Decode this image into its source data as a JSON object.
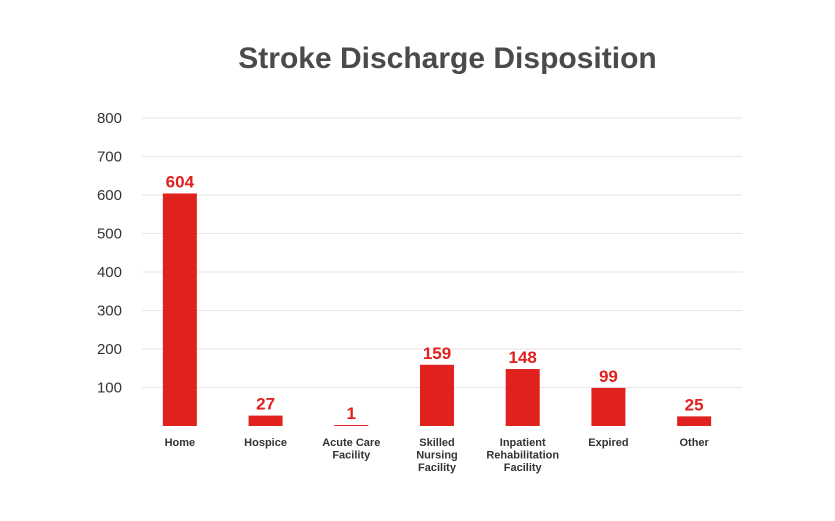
{
  "chart_data": {
    "type": "bar",
    "title": "Stroke Discharge Disposition",
    "xlabel": "",
    "ylabel": "",
    "ylim": [
      0,
      800
    ],
    "yticks": [
      100,
      200,
      300,
      400,
      500,
      600,
      700,
      800
    ],
    "grid": true,
    "categories": [
      [
        "Home"
      ],
      [
        "Hospice"
      ],
      [
        "Acute Care",
        "Facility"
      ],
      [
        "Skilled",
        "Nursing",
        "Facility"
      ],
      [
        "Inpatient",
        "Rehabilitation",
        "Facility"
      ],
      [
        "Expired"
      ],
      [
        "Other"
      ]
    ],
    "values": [
      604,
      27,
      1,
      159,
      148,
      99,
      25
    ],
    "bar_color": "#e0211d"
  }
}
